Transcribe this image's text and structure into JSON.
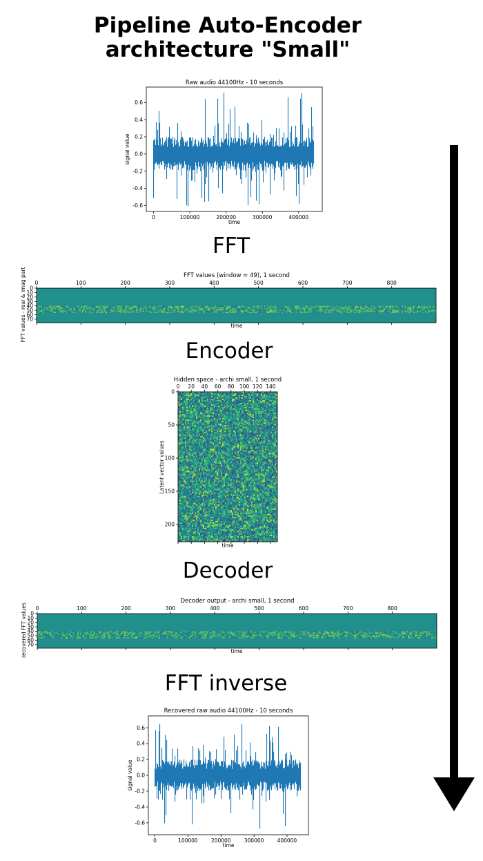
{
  "title": {
    "line1": "Pipeline Auto-Encoder",
    "line2": "architecture \"Small\""
  },
  "stages": {
    "fft": "FFT",
    "encoder": "Encoder",
    "decoder": "Decoder",
    "fft_inverse": "FFT inverse"
  },
  "colors": {
    "line": "#1f77b4",
    "heat_base": "#21908d",
    "heat_dark": "#3b528b",
    "heat_light": "#5ec962",
    "heat_yellow": "#c2df23",
    "arrow": "#000000"
  },
  "chart_data": [
    {
      "id": "raw",
      "type": "line",
      "title": "Raw audio 44100Hz - 10 seconds",
      "xlabel": "time",
      "ylabel": "signal value",
      "xlim": [
        -20000,
        465000
      ],
      "ylim": [
        -0.67,
        0.78
      ],
      "xticks": [
        0,
        100000,
        200000,
        300000,
        400000
      ],
      "yticks": [
        -0.6,
        -0.4,
        -0.2,
        0.0,
        0.2,
        0.4,
        0.6
      ],
      "xtick_labels": [
        "0",
        "100000",
        "200000",
        "300000",
        "400000"
      ],
      "ytick_labels": [
        "-0.6",
        "-0.4",
        "-0.2",
        "0.0",
        "0.2",
        "0.4",
        "0.6"
      ],
      "x_extent": [
        0,
        441000
      ],
      "amplitude_range": [
        -0.62,
        0.73
      ]
    },
    {
      "id": "fft",
      "type": "heatmap",
      "title": "FFT values (window = 49), 1 second",
      "xlabel": "time",
      "ylabel": "FFT values - real & imag part",
      "xlim": [
        0,
        900
      ],
      "ylim": [
        0,
        78
      ],
      "xticks": [
        0,
        100,
        200,
        300,
        400,
        500,
        600,
        700,
        800
      ],
      "yticks": [
        0,
        10,
        20,
        30,
        40,
        50,
        60,
        70
      ],
      "xtick_labels": [
        "0",
        "100",
        "200",
        "300",
        "400",
        "500",
        "600",
        "700",
        "800"
      ],
      "ytick_labels": [
        "0",
        "10",
        "20",
        "30",
        "40",
        "50",
        "60",
        "70"
      ]
    },
    {
      "id": "hidden",
      "type": "heatmap",
      "title": "Hidden space - archi small, 1 second",
      "xlabel": "time",
      "ylabel": "Latent vector values",
      "xlim": [
        0,
        150
      ],
      "ylim": [
        0,
        226
      ],
      "xticks": [
        0,
        20,
        40,
        60,
        80,
        100,
        120,
        140
      ],
      "yticks": [
        0,
        50,
        100,
        150,
        200
      ],
      "xtick_labels": [
        "0",
        "20",
        "40",
        "60",
        "80",
        "100",
        "120",
        "140"
      ],
      "ytick_labels": [
        "0",
        "50",
        "100",
        "150",
        "200"
      ]
    },
    {
      "id": "decoded",
      "type": "heatmap",
      "title": "Decoder output - archi small, 1 second",
      "xlabel": "time",
      "ylabel": "recovered FFT values",
      "xlim": [
        0,
        900
      ],
      "ylim": [
        0,
        78
      ],
      "xticks": [
        0,
        100,
        200,
        300,
        400,
        500,
        600,
        700,
        800
      ],
      "yticks": [
        0,
        10,
        20,
        30,
        40,
        50,
        60,
        70
      ],
      "xtick_labels": [
        "0",
        "100",
        "200",
        "300",
        "400",
        "500",
        "600",
        "700",
        "800"
      ],
      "ytick_labels": [
        "0",
        "10",
        "20",
        "30",
        "40",
        "50",
        "60",
        "70"
      ]
    },
    {
      "id": "recovered",
      "type": "line",
      "title": "Recovered raw audio 44100Hz - 10 seconds",
      "xlabel": "time",
      "ylabel": "signal value",
      "xlim": [
        -20000,
        465000
      ],
      "ylim": [
        -0.75,
        0.75
      ],
      "xticks": [
        0,
        100000,
        200000,
        300000,
        400000
      ],
      "yticks": [
        -0.6,
        -0.4,
        -0.2,
        0.0,
        0.2,
        0.4,
        0.6
      ],
      "xtick_labels": [
        "0",
        "100000",
        "200000",
        "300000",
        "400000"
      ],
      "ytick_labels": [
        "-0.6",
        "-0.4",
        "-0.2",
        "0.0",
        "0.2",
        "0.4",
        "0.6"
      ],
      "x_extent": [
        0,
        441000
      ],
      "amplitude_range": [
        -0.7,
        0.69
      ]
    }
  ]
}
